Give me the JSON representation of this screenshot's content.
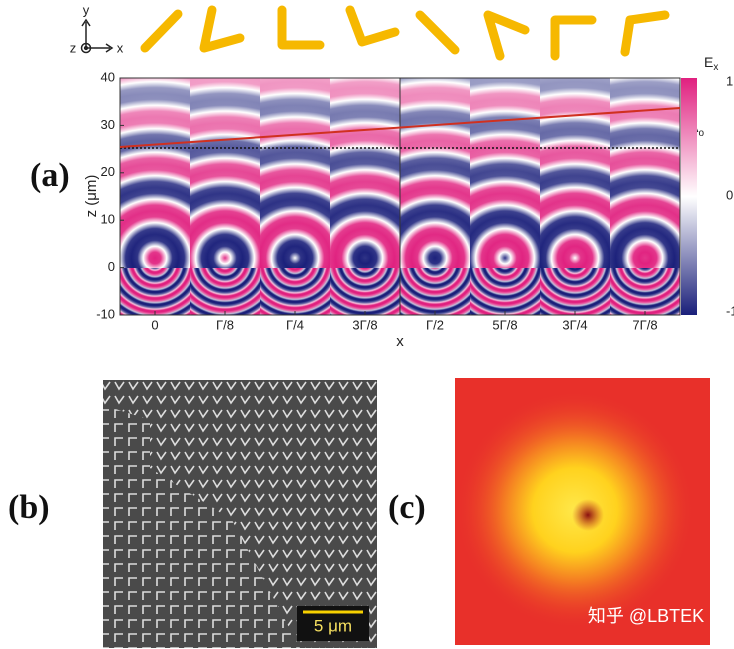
{
  "figure": {
    "panel_a": {
      "label": "(a)",
      "axes_icon": {
        "y": "y",
        "z": "z",
        "x": "x"
      },
      "ylabel": "z (μm)",
      "yticks": [
        "40",
        "30",
        "20",
        "10",
        "0",
        "-10"
      ],
      "xlabel": "x",
      "xticks": [
        "0",
        "Γ/8",
        "Γ/4",
        "3Γ/8",
        "Γ/2",
        "5Γ/8",
        "3Γ/4",
        "7Γ/8"
      ],
      "colorbar": {
        "title": "E",
        "title_sub": "x",
        "ticks": [
          "1",
          "0",
          "-1"
        ]
      },
      "annotation": {
        "text": "λ",
        "sub": "o"
      }
    },
    "panel_b": {
      "label": "(b)",
      "scale_bar": "5 μm"
    },
    "panel_c": {
      "label": "(c)"
    },
    "watermark": "知乎 @LBTEK"
  }
}
